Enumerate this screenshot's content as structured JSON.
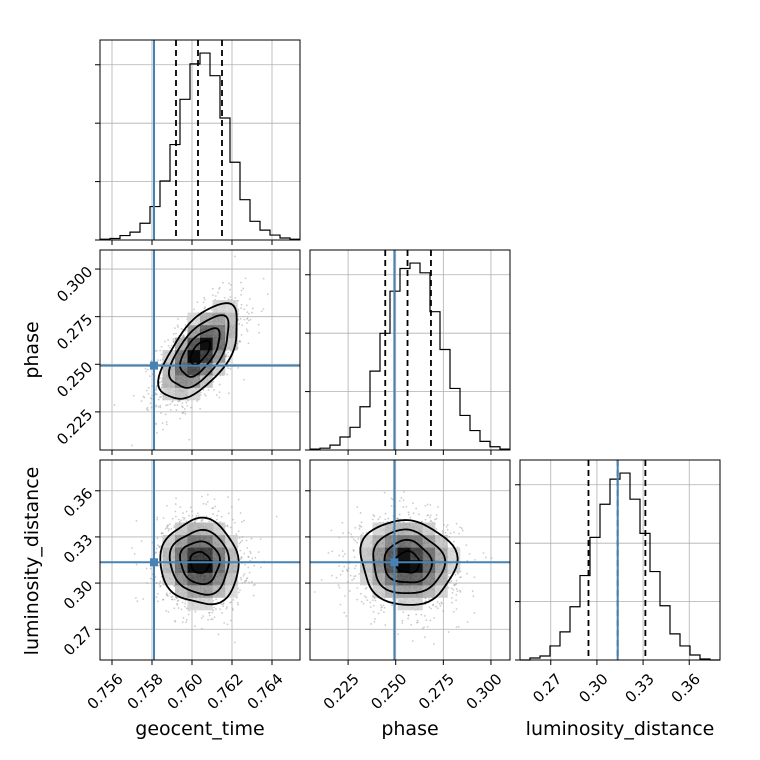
{
  "chart_data": {
    "type": "corner",
    "parameters": [
      "geocent_time",
      "phase",
      "luminosity_distance"
    ],
    "axis_labels": {
      "geocent_time": "geocent_time",
      "phase": "phase",
      "luminosity_distance": "luminosity_distance"
    },
    "ranges": {
      "geocent_time": [
        0.7554,
        0.7654
      ],
      "phase": [
        0.205,
        0.31
      ],
      "luminosity_distance": [
        0.25,
        0.38
      ]
    },
    "ticks": {
      "geocent_time": {
        "values": [
          0.756,
          0.758,
          0.76,
          0.762,
          0.764
        ],
        "labels": [
          "0.756",
          "0.758",
          "0.760",
          "0.762",
          "0.764"
        ]
      },
      "phase": {
        "values": [
          0.225,
          0.25,
          0.275,
          0.3
        ],
        "labels": [
          "0.225",
          "0.250",
          "0.275",
          "0.300"
        ]
      },
      "luminosity_distance": {
        "values": [
          0.27,
          0.3,
          0.33,
          0.36
        ],
        "labels": [
          "0.27",
          "0.30",
          "0.33",
          "0.36"
        ]
      }
    },
    "truths": {
      "geocent_time": 0.7581,
      "phase": 0.2493,
      "luminosity_distance": 0.3135
    },
    "quantiles": {
      "geocent_time": [
        0.7592,
        0.7603,
        0.7615
      ],
      "phase": [
        0.2445,
        0.2562,
        0.2685
      ],
      "luminosity_distance": [
        0.2945,
        0.3135,
        0.3315
      ]
    },
    "colors": {
      "truth": "#4682b4",
      "hist": "#000000",
      "grid": "#b0b0b0",
      "scatter": "#9a9a9a"
    },
    "histograms": {
      "geocent_time": {
        "edges": [
          0.7554,
          0.7559,
          0.7564,
          0.7569,
          0.7574,
          0.7579,
          0.7584,
          0.7589,
          0.7594,
          0.7599,
          0.7604,
          0.7609,
          0.7614,
          0.7619,
          0.7624,
          0.7629,
          0.7634,
          0.7639,
          0.7644,
          0.7649,
          0.7654
        ],
        "counts": [
          0.8,
          1.5,
          4.5,
          8,
          17,
          34,
          60,
          97,
          143,
          179,
          190,
          167,
          124,
          79,
          41,
          19,
          10,
          5,
          2,
          0.8
        ]
      },
      "phase": {
        "edges": [
          0.205,
          0.21025,
          0.2155,
          0.22075,
          0.226,
          0.23125,
          0.2365,
          0.24175,
          0.247,
          0.25225,
          0.2575,
          0.26275,
          0.268,
          0.27325,
          0.2785,
          0.28375,
          0.289,
          0.29425,
          0.2995,
          0.30475,
          0.31
        ],
        "counts": [
          0.8,
          1.7,
          4.5,
          12,
          21,
          40,
          73,
          108,
          147,
          168,
          173,
          164,
          128,
          93,
          57,
          32,
          18,
          8,
          3,
          0.8
        ]
      },
      "luminosity_distance": {
        "edges": [
          0.25,
          0.2565,
          0.263,
          0.2695,
          0.276,
          0.2825,
          0.289,
          0.2955,
          0.302,
          0.3085,
          0.315,
          0.3215,
          0.328,
          0.3345,
          0.341,
          0.3475,
          0.354,
          0.3605,
          0.367,
          0.3735,
          0.38
        ],
        "counts": [
          0,
          2,
          4,
          14,
          28,
          53,
          84,
          122,
          155,
          180,
          186,
          160,
          126,
          88,
          54,
          26,
          14,
          5,
          1,
          0
        ]
      }
    },
    "joint": [
      {
        "x": "geocent_time",
        "y": "phase",
        "mean": [
          0.7604,
          0.2562
        ],
        "sd": [
          0.00098,
          0.0125
        ],
        "corr": 0.6,
        "levels": [
          0.5,
          1.0,
          1.5,
          2.0
        ]
      },
      {
        "x": "geocent_time",
        "y": "luminosity_distance",
        "mean": [
          0.7604,
          0.3135
        ],
        "sd": [
          0.00098,
          0.0138
        ],
        "corr": -0.05,
        "levels": [
          0.5,
          1.0,
          1.5,
          2.0
        ]
      },
      {
        "x": "phase",
        "y": "luminosity_distance",
        "mean": [
          0.2562,
          0.3135
        ],
        "sd": [
          0.0125,
          0.0138
        ],
        "corr": -0.05,
        "levels": [
          0.5,
          1.0,
          1.5,
          2.0
        ]
      }
    ],
    "grid": true
  }
}
